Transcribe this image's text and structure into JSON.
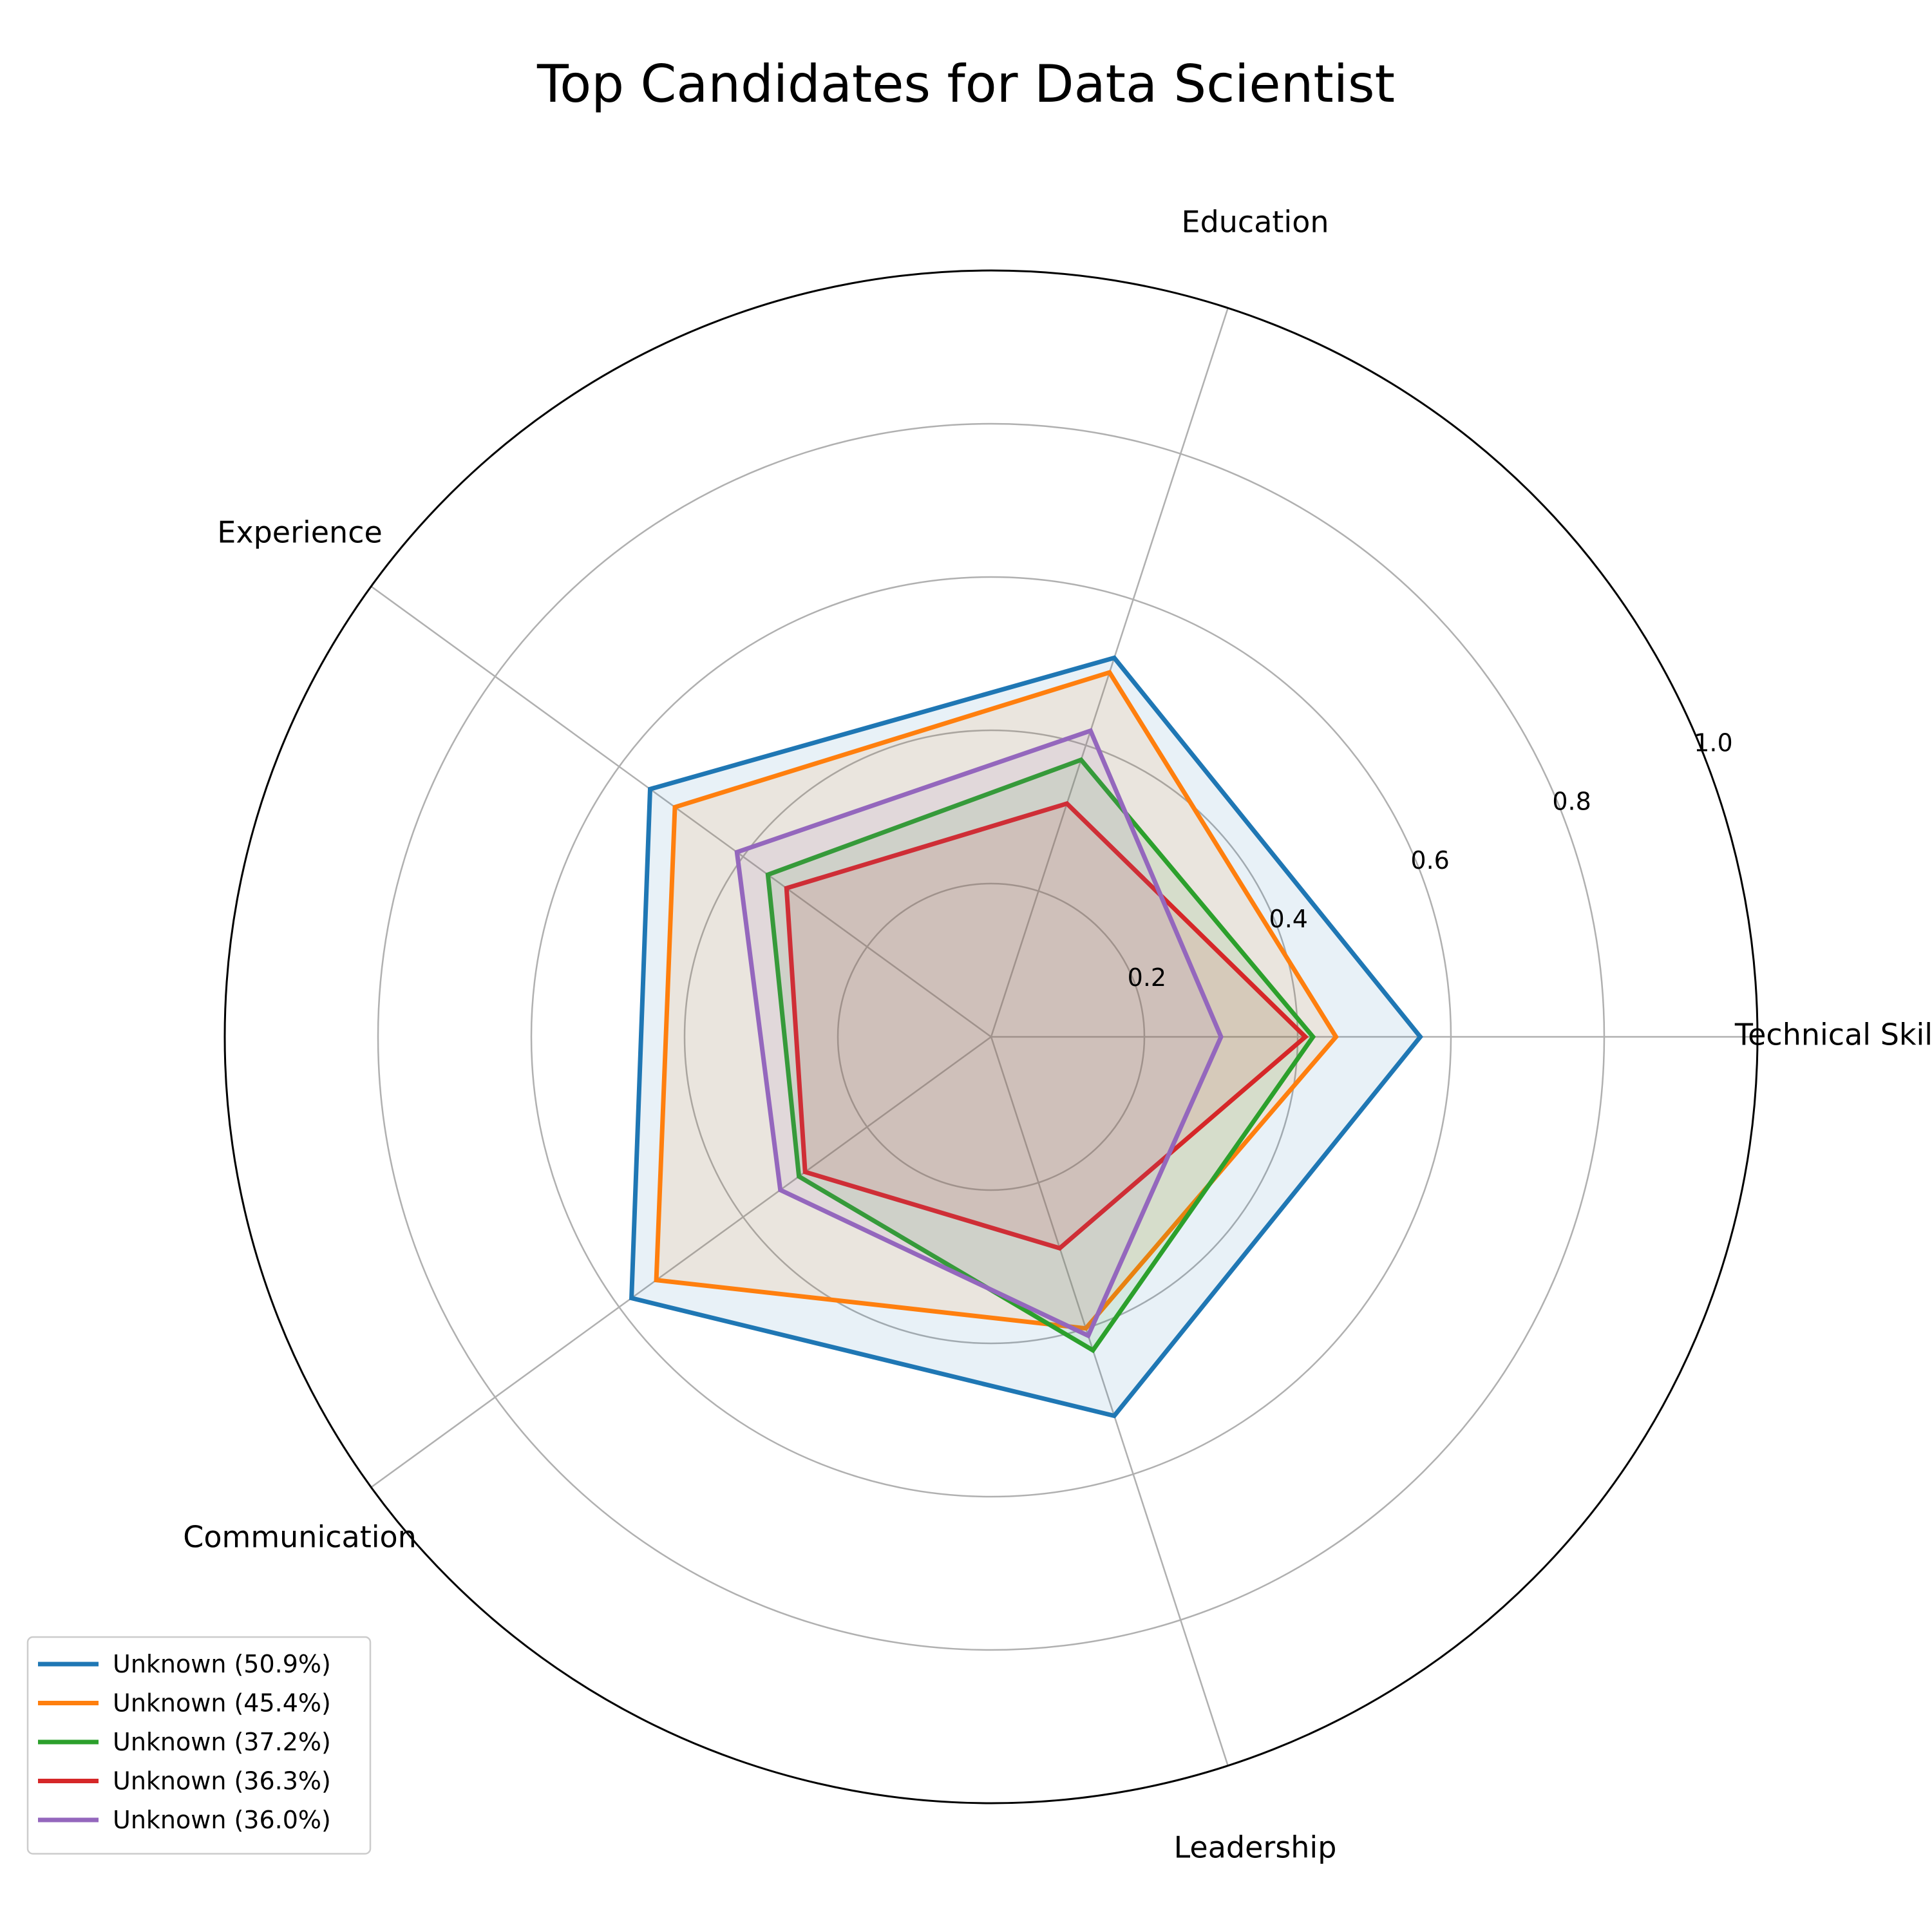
{
  "chart_data": {
    "type": "radar",
    "title": "Top Candidates for Data Scientist",
    "axes": [
      "Technical Skills",
      "Education",
      "Experience",
      "Communication",
      "Leadership"
    ],
    "rlim": [
      0,
      1.0
    ],
    "rticks": [
      0.2,
      0.4,
      0.6,
      0.8,
      1.0
    ],
    "rtick_labels": [
      "0.2",
      "0.4",
      "0.6",
      "0.8",
      "1.0"
    ],
    "grid": true,
    "legend_position": "lower-left",
    "series": [
      {
        "name": "Unknown (50.9%)",
        "color": "#1f77b4",
        "values": [
          0.56,
          0.52,
          0.55,
          0.58,
          0.52
        ]
      },
      {
        "name": "Unknown (45.4%)",
        "color": "#ff7f0e",
        "values": [
          0.45,
          0.5,
          0.51,
          0.54,
          0.4
        ]
      },
      {
        "name": "Unknown (37.2%)",
        "color": "#2ca02c",
        "values": [
          0.42,
          0.38,
          0.36,
          0.31,
          0.43
        ]
      },
      {
        "name": "Unknown (36.3%)",
        "color": "#d62728",
        "values": [
          0.41,
          0.32,
          0.33,
          0.3,
          0.29
        ]
      },
      {
        "name": "Unknown (36.0%)",
        "color": "#9467bd",
        "values": [
          0.3,
          0.42,
          0.41,
          0.34,
          0.41
        ]
      }
    ]
  }
}
